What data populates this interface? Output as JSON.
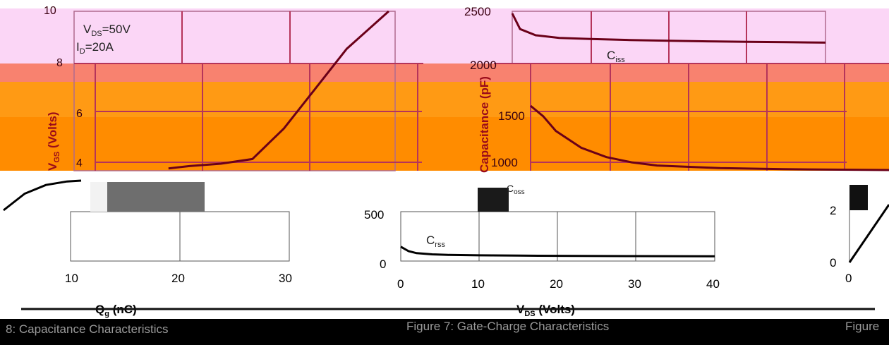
{
  "charts": {
    "gate_charge": {
      "conditions": [
        "V",
        "DS",
        "=50V",
        "I",
        "D",
        "=20A"
      ],
      "ylabel": "V",
      "ylabel_sub": "GS",
      "ylabel_rest": " (Volts)",
      "yticks": [
        "10",
        "8",
        "6",
        "4"
      ],
      "xticks": [
        "10",
        "20",
        "30"
      ],
      "xlabel": "Q",
      "xlabel_sub": "g",
      "xlabel_rest": " (nC)"
    },
    "capacitance": {
      "ylabel": "Capacitance (pF)",
      "yticks": [
        "2500",
        "2000",
        "1500",
        "1000",
        "500",
        "0"
      ],
      "xticks": [
        "0",
        "10",
        "20",
        "30",
        "40"
      ],
      "xlabel": "V",
      "xlabel_sub": "DS",
      "xlabel_rest": " (Volts)",
      "curve_labels": [
        {
          "main": "C",
          "sub": "iss"
        },
        {
          "main": "C",
          "sub": "oss"
        },
        {
          "main": "C",
          "sub": "rss"
        }
      ]
    },
    "third": {
      "yticks": [
        "2",
        "0"
      ],
      "xticks": [
        "0"
      ]
    }
  },
  "captions": {
    "left": "8: Capacitance Characteristics",
    "center": "Figure 7: Gate-Charge Characteristics",
    "right": "Figure"
  },
  "colors": {
    "band_pink": "#fbd6f6",
    "band_salmon": "#f8826f",
    "band_orange_light": "#ff9a14",
    "band_orange": "#ff8c00",
    "curve_dark": "#6a0018",
    "curve_black": "#000000",
    "caption_bg": "#000000"
  },
  "chart_data": [
    {
      "type": "line",
      "title": "Figure 7: Gate-Charge Characteristics",
      "xlabel": "Qg (nC)",
      "ylabel": "VGS (Volts)",
      "xlim": [
        0,
        30
      ],
      "ylim": [
        0,
        10
      ],
      "series": [
        {
          "x": [
            0,
            3,
            6,
            9,
            11,
            14,
            17,
            20,
            23,
            26,
            30
          ],
          "y": [
            0,
            1.9,
            2.9,
            3.3,
            3.4,
            3.5,
            3.7,
            5.0,
            6.7,
            8.4,
            10.0
          ]
        }
      ]
    },
    {
      "type": "line",
      "title": "8: Capacitance Characteristics",
      "xlabel": "VDS (Volts)",
      "ylabel": "Capacitance (pF)",
      "xlim": [
        0,
        40
      ],
      "ylim": [
        0,
        2500
      ],
      "series": [
        {
          "name": "Ciss",
          "x": [
            0,
            1,
            3,
            6,
            10,
            15,
            20,
            25,
            30,
            35,
            40
          ],
          "y": [
            2480,
            2330,
            2270,
            2245,
            2235,
            2225,
            2218,
            2212,
            2208,
            2204,
            2200
          ]
        },
        {
          "name": "Coss",
          "x": [
            0,
            1,
            2,
            4,
            6,
            8,
            10,
            15,
            20,
            30,
            40
          ],
          "y": [
            1500,
            1400,
            1260,
            1100,
            1010,
            960,
            930,
            905,
            895,
            885,
            880
          ]
        },
        {
          "name": "Crss",
          "x": [
            0,
            1,
            2,
            4,
            6,
            10,
            15,
            20,
            30,
            40
          ],
          "y": [
            145,
            100,
            80,
            68,
            62,
            58,
            55,
            53,
            50,
            48
          ]
        }
      ]
    }
  ]
}
